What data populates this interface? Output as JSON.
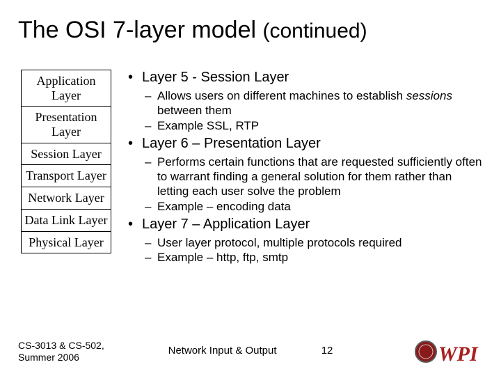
{
  "title": {
    "main": "The OSI 7-layer model ",
    "cont": "(continued)",
    "fontsize_main": 34,
    "fontsize_cont": 30,
    "color": "#000000"
  },
  "stack": {
    "border_color": "#000000",
    "font_family": "Times New Roman",
    "fontsize": 18,
    "cells": [
      "Application Layer",
      "Presentation Layer",
      "Session Layer",
      "Transport Layer",
      "Network Layer",
      "Data Link Layer",
      "Physical Layer"
    ]
  },
  "bullets": {
    "fontsize_level1": 20,
    "fontsize_level2": 17,
    "items": [
      {
        "label": "Layer 5 - Session Layer",
        "subs": [
          {
            "pre": "Allows users on different machines to establish ",
            "em": "sessions",
            "post": " between them"
          },
          {
            "pre": "Example SSL, RTP",
            "em": "",
            "post": ""
          }
        ]
      },
      {
        "label": "Layer 6 – Presentation Layer",
        "subs": [
          {
            "pre": "Performs certain functions that are requested sufficiently often to warrant finding a general solution for them rather than letting each user solve the problem",
            "em": "",
            "post": ""
          },
          {
            "pre": "Example – encoding data",
            "em": "",
            "post": ""
          }
        ]
      },
      {
        "label": "Layer 7 – Application Layer",
        "subs": [
          {
            "pre": "User layer protocol, multiple protocols required",
            "em": "",
            "post": ""
          },
          {
            "pre": "Example – http, ftp, smtp",
            "em": "",
            "post": ""
          }
        ]
      }
    ]
  },
  "footer": {
    "left_line1": "CS-3013 & CS-502,",
    "left_line2": "Summer 2006",
    "center": "Network Input & Output",
    "page": "12",
    "fontsize": 14
  },
  "logo": {
    "seal_fill": "#8a1a1a",
    "seal_border": "#5a5a5a",
    "text": "WPI",
    "text_color": "#aa1f1f"
  },
  "colors": {
    "background": "#ffffff",
    "text": "#000000"
  }
}
